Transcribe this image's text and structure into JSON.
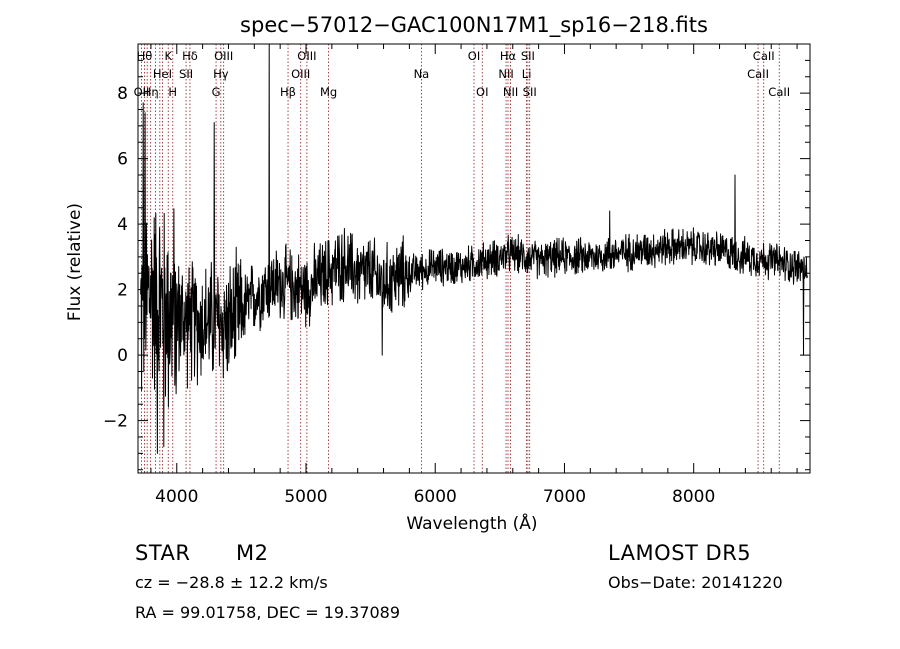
{
  "chart_data": {
    "type": "line",
    "title": "spec−57012−GAC100N17M1_sp16−218.fits",
    "xlabel": "Wavelength (Å)",
    "ylabel": "Flux (relative)",
    "xlim": [
      3700,
      8900
    ],
    "ylim": [
      -3.6,
      9.5
    ],
    "x_ticks": [
      4000,
      5000,
      6000,
      7000,
      8000
    ],
    "x_tick_labels": [
      "4000",
      "5000",
      "6000",
      "7000",
      "8000"
    ],
    "y_ticks": [
      -2,
      0,
      2,
      4,
      6,
      8
    ],
    "y_tick_labels": [
      "−2",
      "0",
      "2",
      "4",
      "6",
      "8"
    ],
    "grid": false,
    "colors": {
      "spectrum": "#000000",
      "line_markers": "#8b1a1a",
      "axes": "#000000"
    },
    "series": [
      {
        "values_continuum": [
          [
            3720,
            1.2
          ],
          [
            3800,
            2.0
          ],
          [
            3900,
            1.4
          ],
          [
            4000,
            1.2
          ],
          [
            4100,
            1.0
          ],
          [
            4200,
            1.0
          ],
          [
            4300,
            1.0
          ],
          [
            4400,
            0.9
          ],
          [
            4500,
            1.3
          ],
          [
            4600,
            1.8
          ],
          [
            4700,
            2.1
          ],
          [
            4800,
            2.2
          ],
          [
            4900,
            2.1
          ],
          [
            5000,
            2.0
          ],
          [
            5100,
            2.3
          ],
          [
            5200,
            2.6
          ],
          [
            5300,
            2.8
          ],
          [
            5400,
            2.5
          ],
          [
            5500,
            2.5
          ],
          [
            5600,
            2.2
          ],
          [
            5700,
            2.4
          ],
          [
            5800,
            2.5
          ],
          [
            5900,
            2.6
          ],
          [
            6000,
            2.7
          ],
          [
            6200,
            2.7
          ],
          [
            6400,
            2.9
          ],
          [
            6600,
            3.1
          ],
          [
            6800,
            2.9
          ],
          [
            7000,
            3.0
          ],
          [
            7200,
            3.0
          ],
          [
            7400,
            3.1
          ],
          [
            7600,
            3.2
          ],
          [
            7800,
            3.3
          ],
          [
            8000,
            3.3
          ],
          [
            8200,
            3.2
          ],
          [
            8400,
            3.0
          ],
          [
            8600,
            2.9
          ],
          [
            8800,
            2.7
          ],
          [
            8880,
            2.6
          ]
        ],
        "features": [
          {
            "x": 3740,
            "y": 7.7
          },
          {
            "x": 3755,
            "y": 7.4
          },
          {
            "x": 3850,
            "y": -3.0
          },
          {
            "x": 3900,
            "y": -2.8
          },
          {
            "x": 4290,
            "y": 7.1
          },
          {
            "x": 4715,
            "y": 9.5
          },
          {
            "x": 5590,
            "y": 0.0
          },
          {
            "x": 7350,
            "y": 4.4
          },
          {
            "x": 8320,
            "y": 5.5
          },
          {
            "x": 8850,
            "y": 0.0
          }
        ]
      }
    ],
    "spectral_lines": [
      {
        "wavelength": 3727,
        "label": "OII",
        "row": 3
      },
      {
        "wavelength": 3750,
        "label": "Hθ",
        "row": 1
      },
      {
        "wavelength": 3771,
        "label": "",
        "row": 0
      },
      {
        "wavelength": 3798,
        "label": "Hη",
        "row": 3
      },
      {
        "wavelength": 3835,
        "label": "",
        "row": 0
      },
      {
        "wavelength": 3869,
        "label": "",
        "row": 0
      },
      {
        "wavelength": 3889,
        "label": "HeI",
        "row": 2
      },
      {
        "wavelength": 3934,
        "label": "K",
        "row": 1
      },
      {
        "wavelength": 3969,
        "label": "H",
        "row": 3
      },
      {
        "wavelength": 4072,
        "label": "SII",
        "row": 2
      },
      {
        "wavelength": 4102,
        "label": "Hδ",
        "row": 1
      },
      {
        "wavelength": 4304,
        "label": "G",
        "row": 3
      },
      {
        "wavelength": 4341,
        "label": "Hγ",
        "row": 2
      },
      {
        "wavelength": 4363,
        "label": "OIII",
        "row": 1
      },
      {
        "wavelength": 4861,
        "label": "Hβ",
        "row": 3
      },
      {
        "wavelength": 4959,
        "label": "OIII",
        "row": 2
      },
      {
        "wavelength": 5007,
        "label": "OIII",
        "row": 1
      },
      {
        "wavelength": 5175,
        "label": "Mg",
        "row": 3
      },
      {
        "wavelength": 5893,
        "label": "Na",
        "row": 2
      },
      {
        "wavelength": 6300,
        "label": "OI",
        "row": 1
      },
      {
        "wavelength": 6364,
        "label": "OI",
        "row": 3
      },
      {
        "wavelength": 6548,
        "label": "NII",
        "row": 2
      },
      {
        "wavelength": 6563,
        "label": "Hα",
        "row": 1
      },
      {
        "wavelength": 6583,
        "label": "NII",
        "row": 3
      },
      {
        "wavelength": 6707,
        "label": "Li",
        "row": 2
      },
      {
        "wavelength": 6717,
        "label": "SII",
        "row": 1
      },
      {
        "wavelength": 6731,
        "label": "SII",
        "row": 3
      },
      {
        "wavelength": 8498,
        "label": "CaII",
        "row": 2
      },
      {
        "wavelength": 8542,
        "label": "CaII",
        "row": 1
      },
      {
        "wavelength": 8662,
        "label": "CaII",
        "row": 3
      }
    ]
  },
  "info": {
    "object_class": "STAR",
    "subclass": "M2",
    "survey": "LAMOST DR5",
    "cz": "cz = −28.8 ± 12.2 km/s",
    "obs_date": "Obs−Date: 20141220",
    "coords": "RA =  99.01758, DEC =  19.37089"
  }
}
